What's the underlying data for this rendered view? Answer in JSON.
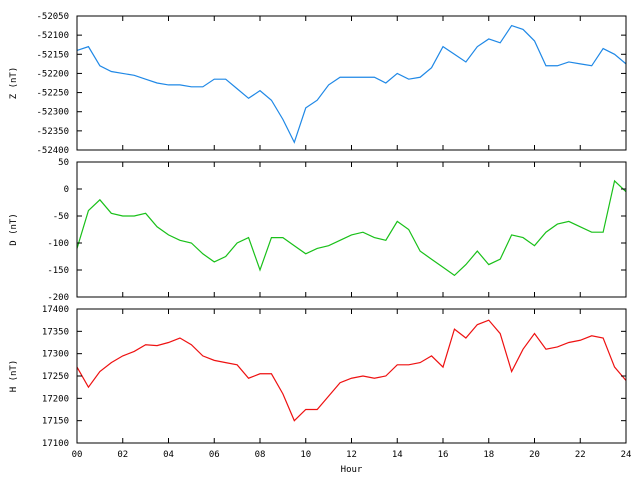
{
  "chart_data": [
    {
      "type": "line",
      "ylabel": "Z (nT)",
      "color": "#1f88e6",
      "x": [
        0,
        0.5,
        1,
        1.5,
        2,
        2.5,
        3,
        3.5,
        4,
        4.5,
        5,
        5.5,
        6,
        6.5,
        7,
        7.5,
        8,
        8.5,
        9,
        9.5,
        10,
        10.5,
        11,
        11.5,
        12,
        12.5,
        13,
        13.5,
        14,
        14.5,
        15,
        15.5,
        16,
        16.5,
        17,
        17.5,
        18,
        18.5,
        19,
        19.5,
        20,
        20.5,
        21,
        21.5,
        22,
        22.5,
        23,
        23.5,
        24
      ],
      "values": [
        -52140,
        -52130,
        -52180,
        -52195,
        -52200,
        -52205,
        -52215,
        -52225,
        -52230,
        -52230,
        -52235,
        -52235,
        -52215,
        -52215,
        -52240,
        -52265,
        -52245,
        -52270,
        -52320,
        -52380,
        -52290,
        -52270,
        -52230,
        -52210,
        -52210,
        -52210,
        -52210,
        -52225,
        -52200,
        -52215,
        -52210,
        -52185,
        -52130,
        -52150,
        -52170,
        -52130,
        -52110,
        -52120,
        -52075,
        -52085,
        -52115,
        -52180,
        -52180,
        -52170,
        -52175,
        -52180,
        -52135,
        -52150,
        -52175
      ],
      "xlim": [
        0,
        24
      ],
      "xticks": [
        0,
        2,
        4,
        6,
        8,
        10,
        12,
        14,
        16,
        18,
        20,
        22,
        24
      ],
      "ylim": [
        -52400,
        -52050
      ],
      "yticks": [
        -52400,
        -52350,
        -52300,
        -52250,
        -52200,
        -52150,
        -52100,
        -52050
      ]
    },
    {
      "type": "line",
      "ylabel": "D (nT)",
      "color": "#19c019",
      "x": [
        0,
        0.5,
        1,
        1.5,
        2,
        2.5,
        3,
        3.5,
        4,
        4.5,
        5,
        5.5,
        6,
        6.5,
        7,
        7.5,
        8,
        8.5,
        9,
        9.5,
        10,
        10.5,
        11,
        11.5,
        12,
        12.5,
        13,
        13.5,
        14,
        14.5,
        15,
        15.5,
        16,
        16.5,
        17,
        17.5,
        18,
        18.5,
        19,
        19.5,
        20,
        20.5,
        21,
        21.5,
        22,
        22.5,
        23,
        23.5,
        24
      ],
      "values": [
        -110,
        -40,
        -20,
        -45,
        -50,
        -50,
        -45,
        -70,
        -85,
        -95,
        -100,
        -120,
        -135,
        -125,
        -100,
        -90,
        -150,
        -90,
        -90,
        -105,
        -120,
        -110,
        -105,
        -95,
        -85,
        -80,
        -90,
        -95,
        -60,
        -75,
        -115,
        -130,
        -145,
        -160,
        -140,
        -115,
        -140,
        -130,
        -85,
        -90,
        -105,
        -80,
        -65,
        -60,
        -70,
        -80,
        -80,
        15,
        -5
      ],
      "xlim": [
        0,
        24
      ],
      "xticks": [
        0,
        2,
        4,
        6,
        8,
        10,
        12,
        14,
        16,
        18,
        20,
        22,
        24
      ],
      "ylim": [
        -200,
        50
      ],
      "yticks": [
        -200,
        -150,
        -100,
        -50,
        0,
        50
      ]
    },
    {
      "type": "line",
      "ylabel": "H (nT)",
      "xlabel": "Hour",
      "color": "#ee1111",
      "x": [
        0,
        0.5,
        1,
        1.5,
        2,
        2.5,
        3,
        3.5,
        4,
        4.5,
        5,
        5.5,
        6,
        6.5,
        7,
        7.5,
        8,
        8.5,
        9,
        9.5,
        10,
        10.5,
        11,
        11.5,
        12,
        12.5,
        13,
        13.5,
        14,
        14.5,
        15,
        15.5,
        16,
        16.5,
        17,
        17.5,
        18,
        18.5,
        19,
        19.5,
        20,
        20.5,
        21,
        21.5,
        22,
        22.5,
        23,
        23.5,
        24
      ],
      "values": [
        17270,
        17225,
        17260,
        17280,
        17295,
        17305,
        17320,
        17318,
        17325,
        17335,
        17320,
        17295,
        17285,
        17280,
        17275,
        17245,
        17255,
        17255,
        17210,
        17150,
        17175,
        17175,
        17205,
        17235,
        17245,
        17250,
        17245,
        17250,
        17275,
        17275,
        17280,
        17295,
        17270,
        17355,
        17335,
        17365,
        17375,
        17345,
        17260,
        17310,
        17345,
        17310,
        17315,
        17325,
        17330,
        17340,
        17335,
        17270,
        17240
      ],
      "xlim": [
        0,
        24
      ],
      "xticks": [
        {
          "value": 0,
          "label": "00"
        },
        {
          "value": 2,
          "label": "02"
        },
        {
          "value": 4,
          "label": "04"
        },
        {
          "value": 6,
          "label": "06"
        },
        {
          "value": 8,
          "label": "08"
        },
        {
          "value": 10,
          "label": "10"
        },
        {
          "value": 12,
          "label": "12"
        },
        {
          "value": 14,
          "label": "14"
        },
        {
          "value": 16,
          "label": "16"
        },
        {
          "value": 18,
          "label": "18"
        },
        {
          "value": 20,
          "label": "20"
        },
        {
          "value": 22,
          "label": "22"
        },
        {
          "value": 24,
          "label": "24"
        }
      ],
      "ylim": [
        17100,
        17400
      ],
      "yticks": [
        17100,
        17150,
        17200,
        17250,
        17300,
        17350,
        17400
      ]
    }
  ]
}
